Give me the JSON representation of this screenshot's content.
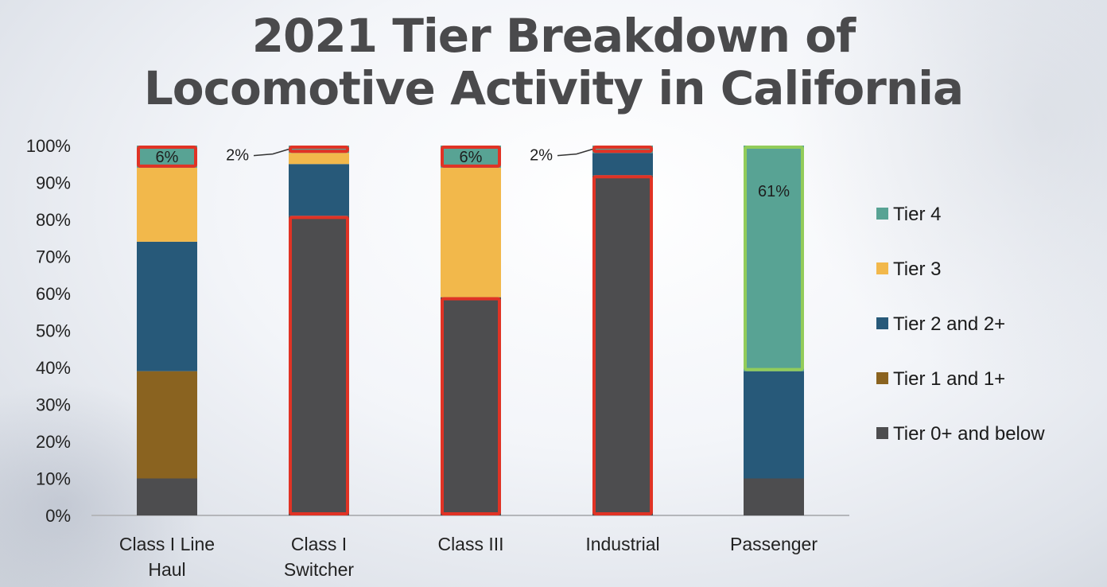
{
  "chart_data": {
    "type": "bar",
    "stacked": true,
    "title": "2021 Tier Breakdown of Locomotive Activity in California",
    "title_lines": [
      "2021 Tier Breakdown of",
      "Locomotive Activity in California"
    ],
    "xlabel": "",
    "ylabel": "",
    "ylim": [
      0,
      100
    ],
    "y_ticks": [
      "0%",
      "10%",
      "20%",
      "30%",
      "40%",
      "50%",
      "60%",
      "70%",
      "80%",
      "90%",
      "100%"
    ],
    "grid": false,
    "legend_position": "right",
    "categories": [
      "Class I Line Haul",
      "Class I Switcher",
      "Class III",
      "Industrial",
      "Passenger"
    ],
    "category_lines": [
      [
        "Class I Line",
        "Haul"
      ],
      [
        "Class I",
        "Switcher"
      ],
      [
        "Class III"
      ],
      [
        "Industrial"
      ],
      [
        "Passenger"
      ]
    ],
    "series": [
      {
        "name": "Tier 0+ and below",
        "color": "#4d4d4f",
        "values": [
          10,
          81,
          59,
          92,
          10
        ]
      },
      {
        "name": "Tier 1 and 1+",
        "color": "#8a6320",
        "values": [
          29,
          0,
          0,
          0,
          0
        ]
      },
      {
        "name": "Tier 2 and 2+",
        "color": "#275979",
        "values": [
          35,
          14,
          0,
          6,
          29
        ]
      },
      {
        "name": "Tier 3",
        "color": "#f2b84b",
        "values": [
          20,
          3,
          35,
          0,
          0
        ]
      },
      {
        "name": "Tier 4",
        "color": "#58a394",
        "values": [
          6,
          2,
          6,
          2,
          61
        ]
      }
    ],
    "legend_order": [
      "Tier 4",
      "Tier 3",
      "Tier 2 and 2+",
      "Tier 1 and 1+",
      "Tier 0+ and below"
    ],
    "annotations": [
      {
        "category": "Class I Line Haul",
        "series": "Tier 4",
        "text": "6%",
        "placement": "inside",
        "highlight": "red"
      },
      {
        "category": "Class I Switcher",
        "series": "Tier 4",
        "text": "2%",
        "placement": "callout-left",
        "highlight": "red"
      },
      {
        "category": "Class I Switcher",
        "series": "Tier 0+ and below",
        "text": "",
        "placement": "none",
        "highlight": "red"
      },
      {
        "category": "Class III",
        "series": "Tier 4",
        "text": "6%",
        "placement": "inside",
        "highlight": "red"
      },
      {
        "category": "Class III",
        "series": "Tier 0+ and below",
        "text": "",
        "placement": "none",
        "highlight": "red"
      },
      {
        "category": "Industrial",
        "series": "Tier 4",
        "text": "2%",
        "placement": "callout-left",
        "highlight": "red"
      },
      {
        "category": "Industrial",
        "series": "Tier 0+ and below",
        "text": "",
        "placement": "none",
        "highlight": "red"
      },
      {
        "category": "Passenger",
        "series": "Tier 4",
        "text": "61%",
        "placement": "inside",
        "highlight": "green"
      }
    ],
    "highlight_colors": {
      "red": "#e03325",
      "green": "#92cc5a"
    }
  }
}
